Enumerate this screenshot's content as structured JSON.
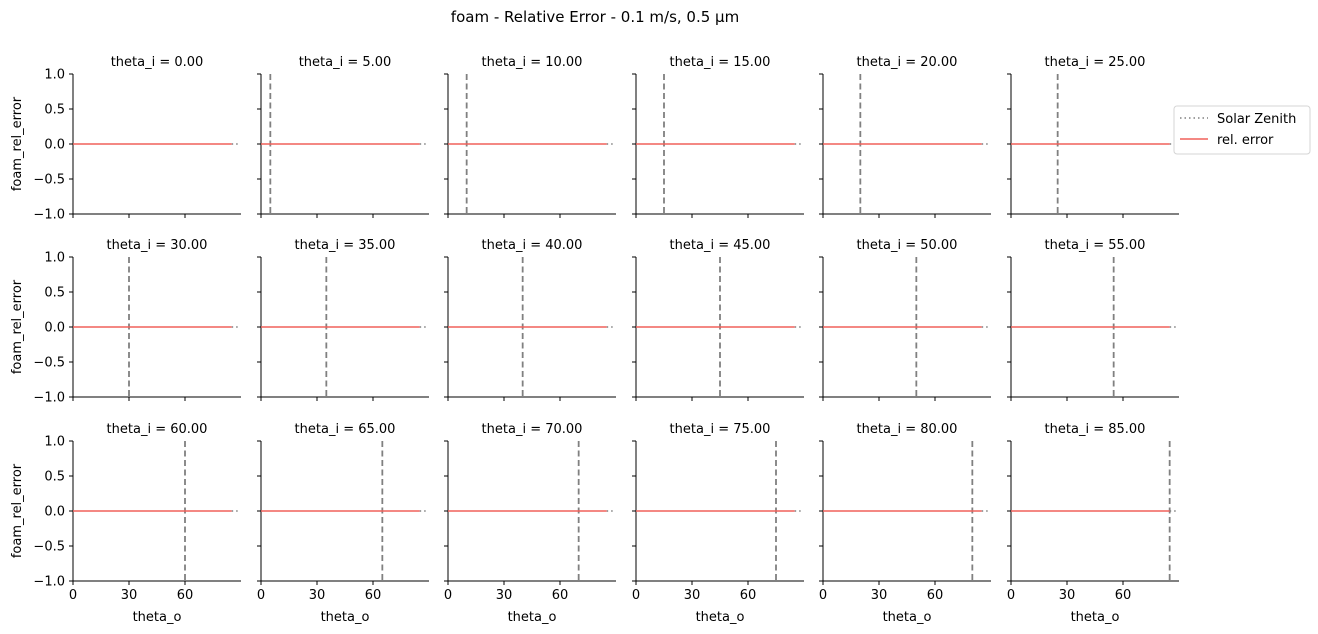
{
  "figure": {
    "suptitle": "foam - Relative Error - 0.1 m/s, 0.5 µm",
    "legend": {
      "placement": "right",
      "entries": [
        {
          "label": "Solar Zenith",
          "style": "dotted",
          "color": "#808080"
        },
        {
          "label": "rel. error",
          "style": "solid",
          "color": "#f0605a"
        }
      ]
    }
  },
  "chart_data": {
    "type": "line",
    "layout": "facet-grid 3x6",
    "xlabel": "theta_o",
    "ylabel": "foam_rel_error",
    "xlim": [
      0,
      90
    ],
    "ylim": [
      -1.0,
      1.0
    ],
    "xticks": [
      0,
      30,
      60
    ],
    "xtick_labels": [
      "0",
      "30",
      "60"
    ],
    "yticks": [
      1.0,
      0.5,
      0.0,
      -0.5,
      -1.0
    ],
    "ytick_labels": [
      "1.0",
      "0.5",
      "0.0",
      "−0.5",
      "−1.0"
    ],
    "series_color": "#f0605a",
    "zenith_color": "#808080",
    "panels": [
      {
        "title": "theta_i = 0.00",
        "theta_i": 0,
        "x": [
          0,
          85
        ],
        "y": [
          0,
          0
        ]
      },
      {
        "title": "theta_i = 5.00",
        "theta_i": 5,
        "x": [
          0,
          85
        ],
        "y": [
          0,
          0
        ]
      },
      {
        "title": "theta_i = 10.00",
        "theta_i": 10,
        "x": [
          0,
          85
        ],
        "y": [
          0,
          0
        ]
      },
      {
        "title": "theta_i = 15.00",
        "theta_i": 15,
        "x": [
          0,
          85
        ],
        "y": [
          0,
          0
        ]
      },
      {
        "title": "theta_i = 20.00",
        "theta_i": 20,
        "x": [
          0,
          85
        ],
        "y": [
          0,
          0
        ]
      },
      {
        "title": "theta_i = 25.00",
        "theta_i": 25,
        "x": [
          0,
          85
        ],
        "y": [
          0,
          0
        ]
      },
      {
        "title": "theta_i = 30.00",
        "theta_i": 30,
        "x": [
          0,
          85
        ],
        "y": [
          0,
          0
        ]
      },
      {
        "title": "theta_i = 35.00",
        "theta_i": 35,
        "x": [
          0,
          85
        ],
        "y": [
          0,
          0
        ]
      },
      {
        "title": "theta_i = 40.00",
        "theta_i": 40,
        "x": [
          0,
          85
        ],
        "y": [
          0,
          0
        ]
      },
      {
        "title": "theta_i = 45.00",
        "theta_i": 45,
        "x": [
          0,
          85
        ],
        "y": [
          0,
          0
        ]
      },
      {
        "title": "theta_i = 50.00",
        "theta_i": 50,
        "x": [
          0,
          85
        ],
        "y": [
          0,
          0
        ]
      },
      {
        "title": "theta_i = 55.00",
        "theta_i": 55,
        "x": [
          0,
          85
        ],
        "y": [
          0,
          0
        ]
      },
      {
        "title": "theta_i = 60.00",
        "theta_i": 60,
        "x": [
          0,
          85
        ],
        "y": [
          0,
          0
        ]
      },
      {
        "title": "theta_i = 65.00",
        "theta_i": 65,
        "x": [
          0,
          85
        ],
        "y": [
          0,
          0
        ]
      },
      {
        "title": "theta_i = 70.00",
        "theta_i": 70,
        "x": [
          0,
          85
        ],
        "y": [
          0,
          0
        ]
      },
      {
        "title": "theta_i = 75.00",
        "theta_i": 75,
        "x": [
          0,
          85
        ],
        "y": [
          0,
          0
        ]
      },
      {
        "title": "theta_i = 80.00",
        "theta_i": 80,
        "x": [
          0,
          85
        ],
        "y": [
          0,
          0
        ]
      },
      {
        "title": "theta_i = 85.00",
        "theta_i": 85,
        "x": [
          0,
          85
        ],
        "y": [
          0,
          0
        ]
      }
    ]
  }
}
